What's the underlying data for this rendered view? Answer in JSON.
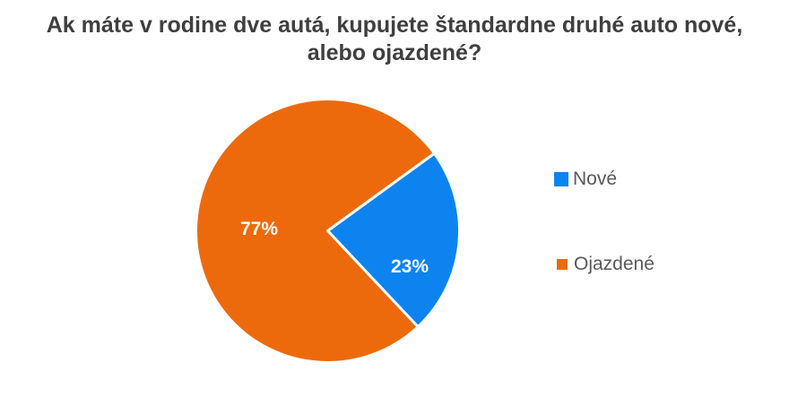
{
  "chart_data": {
    "type": "pie",
    "title": "Ak máte v rodine dve autá, kupujete štandardne druhé auto nové, alebo ojazdené?",
    "series": [
      {
        "name": "Nové",
        "value": 23,
        "percent_label": "23%",
        "color": "#0d83f0"
      },
      {
        "name": "Ojazdené",
        "value": 77,
        "percent_label": "77%",
        "color": "#ed6a0c"
      }
    ],
    "legend": {
      "position": "right",
      "entries": [
        "Nové",
        "Ojazdené"
      ]
    },
    "start_angle_deg": 54,
    "direction": "clockwise",
    "data_labels": "percent, inside",
    "background_color": "#ffffff",
    "title_color": "#3f3f3f",
    "legend_text_color": "#595959"
  }
}
